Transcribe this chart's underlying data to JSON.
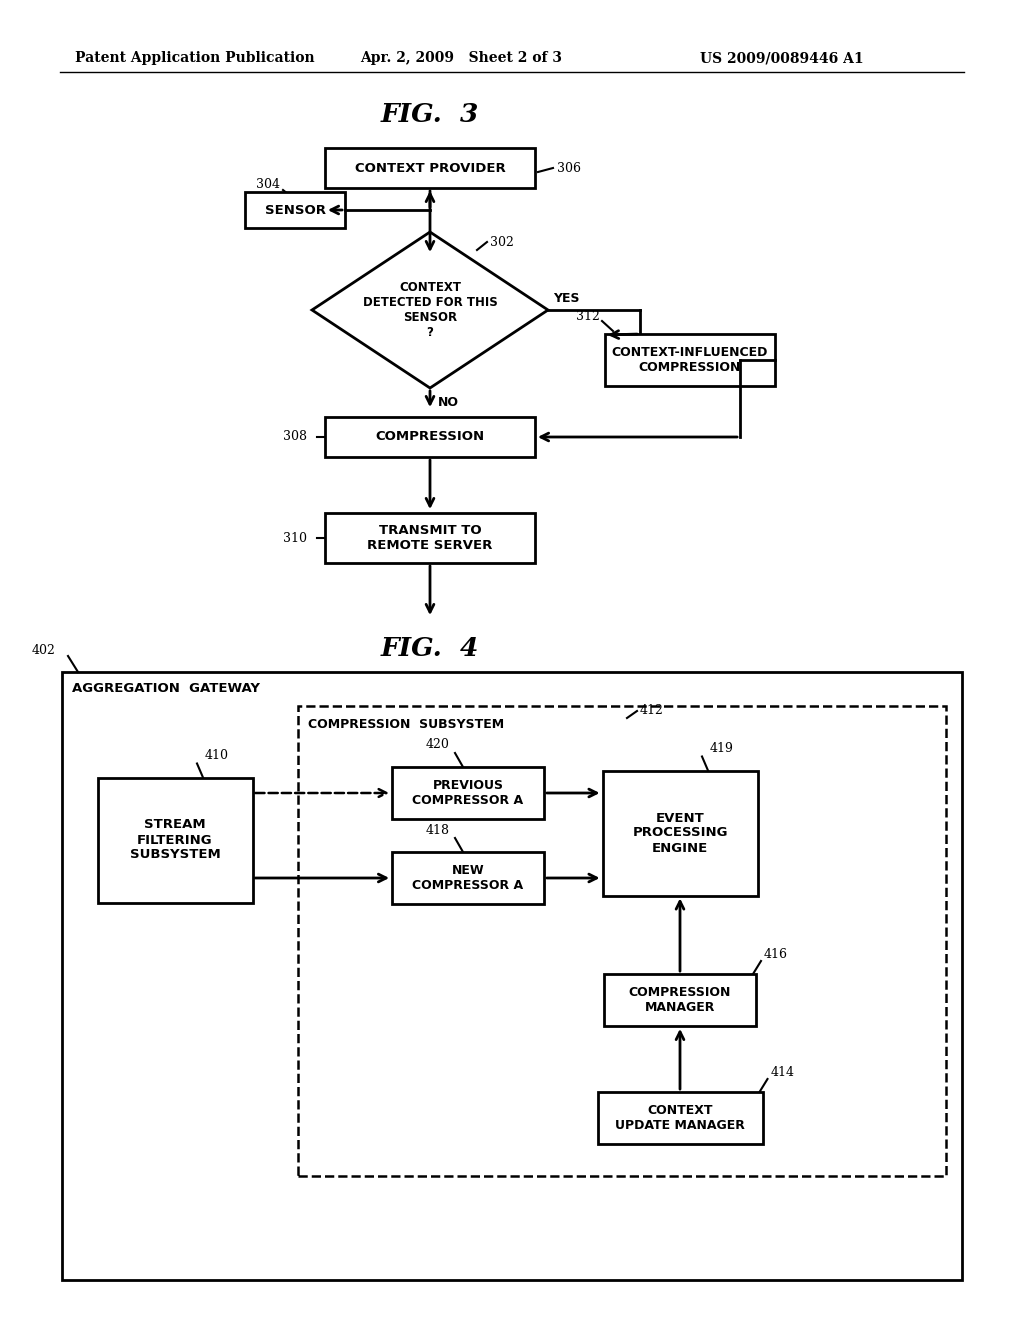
{
  "bg_color": "#ffffff",
  "header_left": "Patent Application Publication",
  "header_mid": "Apr. 2, 2009   Sheet 2 of 3",
  "header_right": "US 2009/0089446 A1",
  "fig3_title": "FIG.  3",
  "fig4_title": "FIG.  4",
  "text_color": "#000000",
  "line_color": "#000000"
}
